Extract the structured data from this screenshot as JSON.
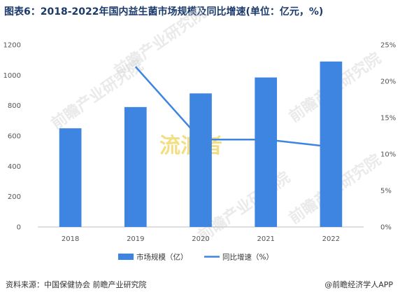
{
  "header": {
    "title": "图表6：2018-2022年国内益生菌市场规模及同比增速(单位：亿元，%)"
  },
  "footer": {
    "source": "资料来源：中国保健协会 前瞻产业研究院",
    "brand": "@前瞻经济学人APP"
  },
  "watermarks": {
    "main": "流浪者",
    "logo": "前瞻产业研究院"
  },
  "colors": {
    "bar": "#3d85e0",
    "line": "#3d85e0",
    "axis": "#bfbfbf"
  },
  "chart_data": {
    "type": "bar",
    "title": "图表6：2018-2022年国内益生菌市场规模及同比增速(单位：亿元，%)",
    "categories": [
      "2018",
      "2019",
      "2020",
      "2021",
      "2022"
    ],
    "series": [
      {
        "name": "市场规模（亿）",
        "type": "bar",
        "axis": "left",
        "values": [
          650,
          790,
          880,
          985,
          1090
        ]
      },
      {
        "name": "同比增速（%）",
        "type": "line",
        "axis": "right",
        "values": [
          null,
          22,
          12.0,
          12.0,
          11.0
        ]
      }
    ],
    "ylim_left": [
      0,
      1200
    ],
    "yticks_left": [
      "0",
      "200",
      "400",
      "600",
      "800",
      "1000",
      "1200"
    ],
    "ylim_right": [
      0,
      25
    ],
    "yticks_right": [
      "0%",
      "5%",
      "10%",
      "15%",
      "20%",
      "25%"
    ],
    "legend_position": "bottom",
    "grid": false
  }
}
